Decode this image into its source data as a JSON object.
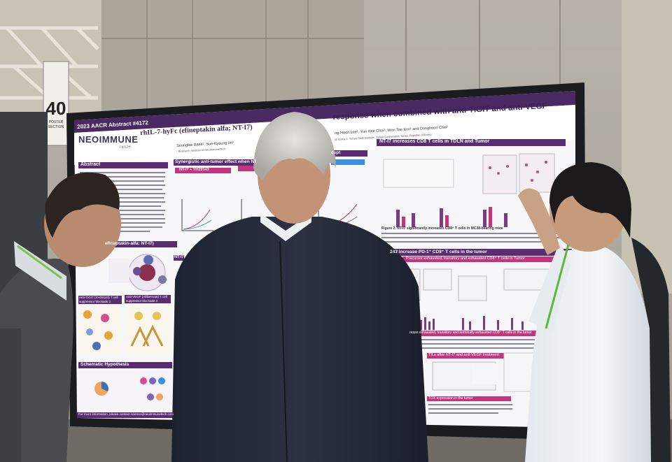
{
  "booth": {
    "number": "40",
    "sign_text": "POSTER SECTION"
  },
  "poster": {
    "abstract_tag": "2023 AACR Abstract #4172",
    "logo": "NEOIMMUNE",
    "logo_sub": "TECH",
    "title_left": "rhIL-7-hyFc (efineptakin alfa; NT-I7)",
    "title_right": "response when combined with anti-TIGIT and anti-VEGF",
    "authors_left": "Seunglae Baek¹, Sun-Kyoung Im¹",
    "authors_right": "ng-Hoon Lee¹, Yun Hee Choi¹, Won Tae Kim¹ and Donghoon Choi¹",
    "affiliation_left": "¹ Research Institute of NeoImmuneTech",
    "affiliation_right": "of Korea 2. Yuhan R&D Institute, Yuhan Corporation, Seoul, Republic of Korea",
    "headers": {
      "abstract": "Abstract",
      "synergy": "Synergistic anti-tumor effect when NT-I7",
      "concept": "cept",
      "cd8": "NT-I7 increases CD8 T cells in TDLN and Tumor",
      "efineptakin": "efineptakin-alfa: NT-I7)",
      "anti_tigit": "Anti-TIGIT (YH29143) T cell suppressor blockade 1",
      "anti_vegf": "Anti-VEGF (Aflibercept) T cell suppressor blockade 2",
      "schematic": "Schematic Hypothesis",
      "nt_label": "NT-I7 + YH29143",
      "precursor": "Precursor exhausted, transitory and exhausted CD8⁺ T cells in Tumor",
      "pd1": "243 increase PD-1⁺ CD8⁺ T cells in the tumor",
      "exhausted": "rease exhausted, transitory and terminally exhausted CD8⁺ T cells in the tumor",
      "tils": "TILs after NT-I7 and anti-VEGF treatment",
      "tox": "TOX expression in the tumor",
      "nt_short": "NT-I7 and"
    },
    "figure_caption": "Figure 2. NT-I7 significantly increases CD8⁺ T cells in MC38-bearing mice",
    "footer": "For more information, please contact science@neoimmunetech.com"
  }
}
